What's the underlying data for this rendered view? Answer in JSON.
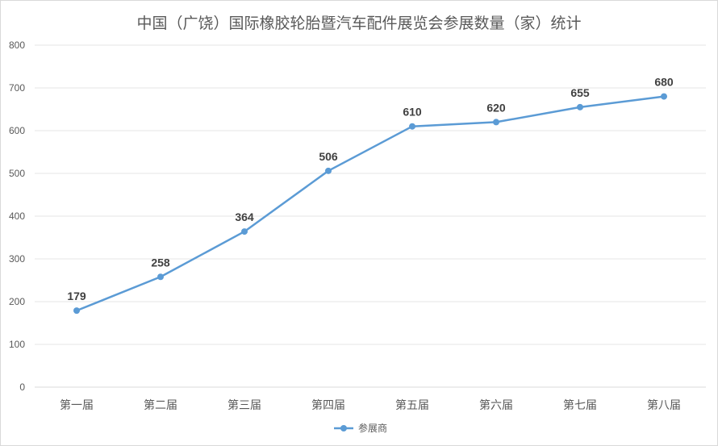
{
  "chart_data": {
    "type": "line",
    "title": "中国（广饶）国际橡胶轮胎暨汽车配件展览会参展数量（家）统计",
    "categories": [
      "第一届",
      "第二届",
      "第三届",
      "第四届",
      "第五届",
      "第六届",
      "第七届",
      "第八届"
    ],
    "series": [
      {
        "name": "参展商",
        "values": [
          179,
          258,
          364,
          506,
          610,
          620,
          655,
          680
        ]
      }
    ],
    "ylim": [
      0,
      800
    ],
    "yticks": [
      0,
      100,
      200,
      300,
      400,
      500,
      600,
      700,
      800
    ],
    "grid": true,
    "legend": "bottom",
    "colors": {
      "line": "#5b9bd5",
      "grid": "#e6e6e6",
      "text": "#595959"
    }
  }
}
